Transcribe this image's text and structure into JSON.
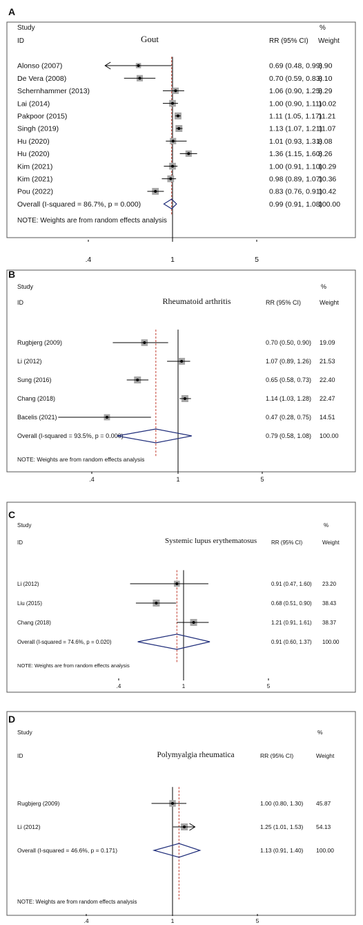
{
  "chart_data": [
    {
      "type": "forest",
      "panel_label": "A",
      "title": "Gout",
      "header": {
        "study": "Study",
        "id": "ID",
        "rr": "RR (95% CI)",
        "pct": "%",
        "weight": "Weight"
      },
      "studies": [
        {
          "name": "Alonso  (2007)",
          "rr": 0.69,
          "lo": 0.48,
          "hi": 0.99,
          "ci_text": "0.69 (0.48, 0.99)",
          "weight": 3.9,
          "weight_text": "3.90",
          "arrow_left": true,
          "arrow_right": false
        },
        {
          "name": "De Vera (2008)",
          "rr": 0.7,
          "lo": 0.59,
          "hi": 0.83,
          "ci_text": "0.70 (0.59, 0.83)",
          "weight": 8.1,
          "weight_text": "8.10",
          "arrow_left": false,
          "arrow_right": false
        },
        {
          "name": "Schernhammer (2013)",
          "rr": 1.06,
          "lo": 0.9,
          "hi": 1.25,
          "ci_text": "1.06 (0.90, 1.25)",
          "weight": 8.29,
          "weight_text": "8.29",
          "arrow_left": false,
          "arrow_right": false
        },
        {
          "name": "Lai (2014)",
          "rr": 1.0,
          "lo": 0.9,
          "hi": 1.11,
          "ci_text": "1.00 (0.90, 1.11)",
          "weight": 10.02,
          "weight_text": "10.02",
          "arrow_left": false,
          "arrow_right": false
        },
        {
          "name": "Pakpoor (2015)",
          "rr": 1.11,
          "lo": 1.05,
          "hi": 1.17,
          "ci_text": "1.11 (1.05, 1.17)",
          "weight": 11.21,
          "weight_text": "11.21",
          "arrow_left": false,
          "arrow_right": false
        },
        {
          "name": "Singh (2019)",
          "rr": 1.13,
          "lo": 1.07,
          "hi": 1.21,
          "ci_text": "1.13 (1.07, 1.21)",
          "weight": 11.07,
          "weight_text": "11.07",
          "arrow_left": false,
          "arrow_right": false
        },
        {
          "name": "Hu (2020)",
          "rr": 1.01,
          "lo": 0.93,
          "hi": 1.31,
          "ci_text": "1.01 (0.93, 1.31)",
          "weight": 8.08,
          "weight_text": "8.08",
          "arrow_left": false,
          "arrow_right": false
        },
        {
          "name": "Hu (2020)",
          "rr": 1.36,
          "lo": 1.15,
          "hi": 1.6,
          "ci_text": "1.36 (1.15, 1.60)",
          "weight": 8.26,
          "weight_text": "8.26",
          "arrow_left": false,
          "arrow_right": false
        },
        {
          "name": "Kim (2021)",
          "rr": 1.0,
          "lo": 0.91,
          "hi": 1.1,
          "ci_text": "1.00 (0.91, 1.10)",
          "weight": 10.29,
          "weight_text": "10.29",
          "arrow_left": false,
          "arrow_right": false
        },
        {
          "name": "Kim (2021)",
          "rr": 0.98,
          "lo": 0.89,
          "hi": 1.07,
          "ci_text": "0.98 (0.89, 1.07)",
          "weight": 10.36,
          "weight_text": "10.36",
          "arrow_left": false,
          "arrow_right": false
        },
        {
          "name": "Pou (2022)",
          "rr": 0.83,
          "lo": 0.76,
          "hi": 0.91,
          "ci_text": "0.83 (0.76, 0.91)",
          "weight": 10.42,
          "weight_text": "10.42",
          "arrow_left": false,
          "arrow_right": false
        }
      ],
      "overall": {
        "label": "Overall  (I-squared = 86.7%, p = 0.000)",
        "rr": 0.99,
        "lo": 0.91,
        "hi": 1.08,
        "ci_text": "0.99 (0.91, 1.08)",
        "weight_text": "100.00"
      },
      "note": "NOTE: Weights are from random effects analysis",
      "x_ticks": [
        {
          "value": 0.4,
          "label": ".4"
        },
        {
          "value": 1,
          "label": "1"
        },
        {
          "value": 5,
          "label": "5"
        }
      ],
      "x_scale": "log",
      "xlim": [
        0.3,
        7.0
      ]
    },
    {
      "type": "forest",
      "panel_label": "B",
      "title": "Rheumatoid arthritis",
      "header": {
        "study": "Study",
        "id": "ID",
        "rr": "RR (95% CI)",
        "pct": "%",
        "weight": "Weight"
      },
      "studies": [
        {
          "name": "Rugbjerg (2009)",
          "rr": 0.7,
          "lo": 0.5,
          "hi": 0.9,
          "ci_text": "0.70 (0.50, 0.90)",
          "weight": 19.09,
          "weight_text": "19.09",
          "arrow_left": false,
          "arrow_right": false
        },
        {
          "name": "Li (2012)",
          "rr": 1.07,
          "lo": 0.89,
          "hi": 1.26,
          "ci_text": "1.07 (0.89, 1.26)",
          "weight": 21.53,
          "weight_text": "21.53",
          "arrow_left": false,
          "arrow_right": false
        },
        {
          "name": "Sung (2016)",
          "rr": 0.65,
          "lo": 0.58,
          "hi": 0.73,
          "ci_text": "0.65 (0.58, 0.73)",
          "weight": 22.4,
          "weight_text": "22.40",
          "arrow_left": false,
          "arrow_right": false
        },
        {
          "name": "Chang (2018)",
          "rr": 1.14,
          "lo": 1.03,
          "hi": 1.28,
          "ci_text": "1.14 (1.03, 1.28)",
          "weight": 22.47,
          "weight_text": "22.47",
          "arrow_left": false,
          "arrow_right": false
        },
        {
          "name": "Bacelis (2021)",
          "rr": 0.47,
          "lo": 0.28,
          "hi": 0.75,
          "ci_text": "0.47 (0.28, 0.75)",
          "weight": 14.51,
          "weight_text": "14.51",
          "arrow_left": false,
          "arrow_right": false
        }
      ],
      "overall": {
        "label": "Overall  (I-squared = 93.5%, p = 0.000)",
        "rr": 0.79,
        "lo": 0.58,
        "hi": 1.08,
        "ci_text": "0.79 (0.58, 1.08)",
        "weight_text": "100.00"
      },
      "note": "NOTE: Weights are from random effects analysis",
      "x_ticks": [
        {
          "value": 0.4,
          "label": ".4"
        },
        {
          "value": 1,
          "label": "1"
        },
        {
          "value": 5,
          "label": "5"
        }
      ],
      "x_scale": "log",
      "xlim": [
        0.27,
        7.0
      ]
    },
    {
      "type": "forest",
      "panel_label": "C",
      "title": "Systemic lupus erythematosus",
      "header": {
        "study": "Study",
        "id": "ID",
        "rr": "RR (95% CI)",
        "pct": "%",
        "weight": "Weight"
      },
      "studies": [
        {
          "name": "Li (2012)",
          "rr": 0.91,
          "lo": 0.47,
          "hi": 1.6,
          "ci_text": "0.91 (0.47, 1.60)",
          "weight": 23.2,
          "weight_text": "23.20",
          "arrow_left": false,
          "arrow_right": false
        },
        {
          "name": "Liu (2015)",
          "rr": 0.68,
          "lo": 0.51,
          "hi": 0.9,
          "ci_text": "0.68 (0.51, 0.90)",
          "weight": 38.43,
          "weight_text": "38.43",
          "arrow_left": false,
          "arrow_right": false
        },
        {
          "name": "Chang (2018)",
          "rr": 1.21,
          "lo": 0.91,
          "hi": 1.61,
          "ci_text": "1.21 (0.91, 1.61)",
          "weight": 38.37,
          "weight_text": "38.37",
          "arrow_left": false,
          "arrow_right": false
        }
      ],
      "overall": {
        "label": "Overall  (I-squared = 74.6%, p = 0.020)",
        "rr": 0.91,
        "lo": 0.6,
        "hi": 1.37,
        "ci_text": "0.91 (0.60, 1.37)",
        "weight_text": "100.00"
      },
      "note": "NOTE: Weights are from random effects analysis",
      "x_ticks": [
        {
          "value": 0.4,
          "label": ".4"
        },
        {
          "value": 1,
          "label": "1"
        },
        {
          "value": 5,
          "label": "5"
        }
      ],
      "x_scale": "log",
      "xlim": [
        0.25,
        7.0
      ]
    },
    {
      "type": "forest",
      "panel_label": "D",
      "title": "Polymyalgia rheumatica",
      "header": {
        "study": "Study",
        "id": "ID",
        "rr": "RR (95% CI)",
        "pct": "%",
        "weight": "Weight"
      },
      "studies": [
        {
          "name": "Rugbjerg (2009)",
          "rr": 1.0,
          "lo": 0.8,
          "hi": 1.3,
          "ci_text": "1.00 (0.80, 1.30)",
          "weight": 45.87,
          "weight_text": "45.87",
          "arrow_left": false,
          "arrow_right": false
        },
        {
          "name": "Li (2012)",
          "rr": 1.25,
          "lo": 1.01,
          "hi": 1.53,
          "ci_text": "1.25 (1.01, 1.53)",
          "weight": 54.13,
          "weight_text": "54.13",
          "arrow_left": false,
          "arrow_right": true
        }
      ],
      "overall": {
        "label": "Overall  (I-squared = 46.6%, p = 0.171)",
        "rr": 1.13,
        "lo": 0.91,
        "hi": 1.4,
        "ci_text": "1.13 (0.91, 1.40)",
        "weight_text": "100.00"
      },
      "note": "NOTE: Weights are from random effects analysis",
      "x_ticks": [
        {
          "value": 0.4,
          "label": ".4"
        },
        {
          "value": 1,
          "label": "1"
        },
        {
          "value": 5,
          "label": "5"
        }
      ],
      "x_scale": "log",
      "xlim": [
        0.27,
        7.0
      ]
    }
  ],
  "colors": {
    "ci_line": "#000000",
    "null_line": "#000000",
    "overall_line": "#c0392b",
    "diamond": "#1f2d7a",
    "weight_box": "#a6a6a6",
    "frame": "#555555"
  }
}
